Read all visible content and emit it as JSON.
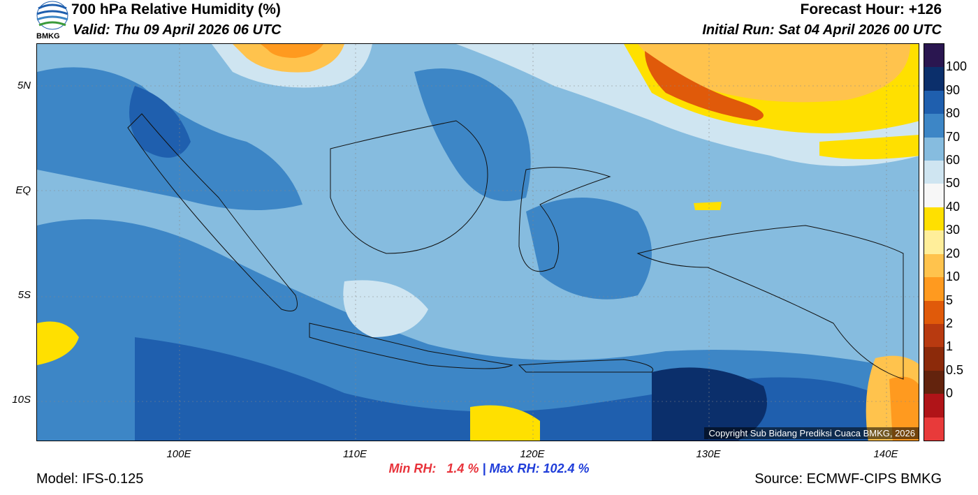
{
  "header": {
    "title": "700 hPa Relative Humidity (%)",
    "valid": "Valid: Thu 09 April 2026 06 UTC",
    "forecast_hour": "Forecast Hour: +126",
    "initial_run": "Initial Run: Sat 04 April 2026 00 UTC",
    "logo_text": "BMKG"
  },
  "map": {
    "lat_labels": [
      "5N",
      "EQ",
      "5S",
      "10S"
    ],
    "lon_labels": [
      "100E",
      "110E",
      "120E",
      "130E",
      "140E"
    ],
    "copyright": "Copyright Sub Bidang Prediksi Cuaca BMKG, 2026"
  },
  "colorbar": {
    "labels": [
      "100",
      "90",
      "80",
      "70",
      "60",
      "50",
      "40",
      "30",
      "20",
      "10",
      "5",
      "2",
      "1",
      "0.5",
      "0"
    ],
    "colors": [
      "#2a1650",
      "#0b2f6b",
      "#1f5fae",
      "#3d86c6",
      "#86bcdf",
      "#cfe5f1",
      "#f7f7f7",
      "#ffe000",
      "#ffee9a",
      "#ffc34d",
      "#ff9a1f",
      "#e05a0a",
      "#b83a10",
      "#8c2a0a",
      "#63230d",
      "#b01418",
      "#e83a3a"
    ]
  },
  "stats": {
    "min_label": "Min RH:   1.4 %",
    "separator": " | ",
    "max_label": "Max RH: 102.4 %"
  },
  "footer": {
    "model": "Model: IFS-0.125",
    "source": "Source: ECMWF-CIPS BMKG"
  }
}
